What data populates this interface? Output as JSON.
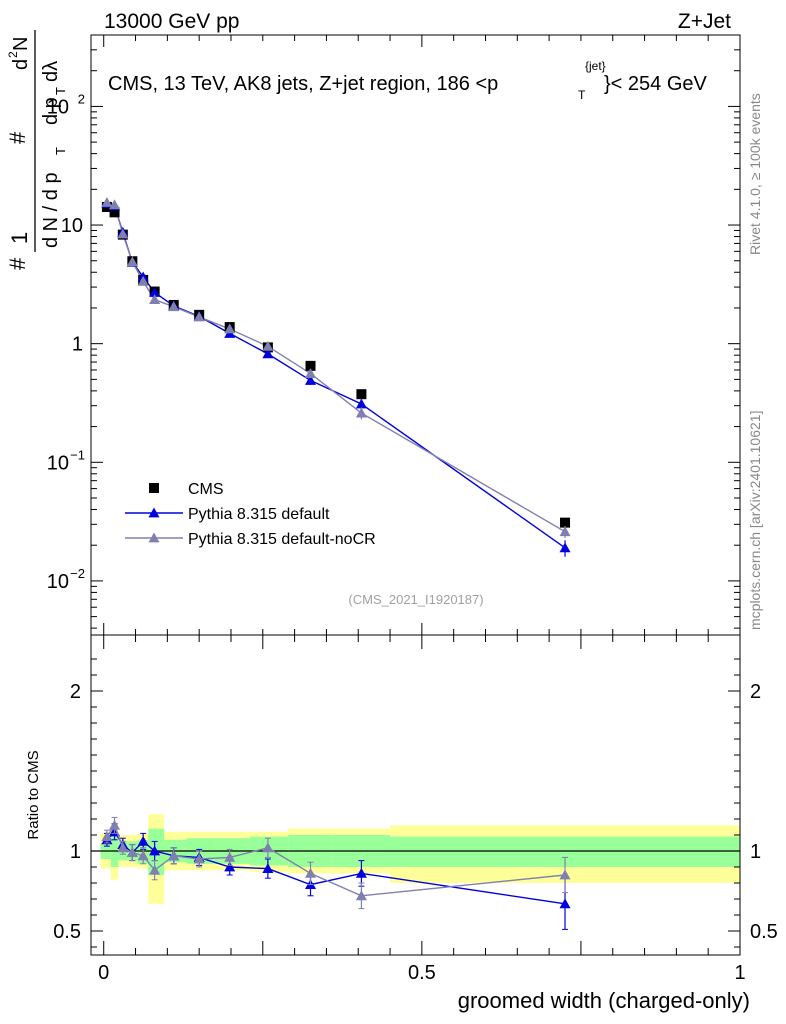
{
  "header": {
    "left": "13000 GeV pp",
    "right": "Z+Jet"
  },
  "side_labels": {
    "rivet": "Rivet 4.1.0, ≥ 100k events",
    "mcplots": "mcplots.cern.ch [arXiv:2401.10621]"
  },
  "colors": {
    "data": "#000000",
    "default": "#0000dd",
    "nocr": "#8080b0",
    "band_inner": "#99ff99",
    "band_outer": "#ffff99"
  },
  "chart_data": [
    {
      "type": "line",
      "scale": "log",
      "title_parts": {
        "prefix": "CMS, 13 TeV, AK8 jets, Z+jet region, 186 <p",
        "sup": "{jet}",
        "sub": "T",
        "suffix": "}< 254 GeV"
      },
      "ylabel_parts": {
        "hash1": "#",
        "one": "1",
        "dN": "d N / d p",
        "t1": "T",
        "hash2": "#",
        "dp": "d p",
        "t2": "T",
        "d2N": "d",
        "sq": "2",
        "N": "N",
        "dlam": "dλ"
      },
      "ylim": [
        0.0035,
        400
      ],
      "y_ticks": [
        {
          "value": 0.01,
          "base": "10",
          "exp": "−2"
        },
        {
          "value": 0.1,
          "base": "10",
          "exp": "−1"
        },
        {
          "value": 1,
          "base": "1",
          "exp": ""
        },
        {
          "value": 10,
          "base": "10",
          "exp": ""
        },
        {
          "value": 100,
          "base": "10",
          "exp": "2"
        }
      ],
      "watermark": "(CMS_2021_I1920187)",
      "legend": [
        {
          "label": "CMS",
          "marker": "square",
          "series": "data"
        },
        {
          "label": "Pythia 8.315 default",
          "marker": "triangle",
          "series": "default"
        },
        {
          "label": "Pythia 8.315 default-noCR",
          "marker": "triangle",
          "series": "nocr"
        }
      ],
      "series": [
        {
          "name": "CMS",
          "key": "data",
          "x": [
            0.005,
            0.017,
            0.03,
            0.045,
            0.062,
            0.08,
            0.11,
            0.15,
            0.198,
            0.258,
            0.325,
            0.405,
            0.725
          ],
          "y": [
            14.2,
            12.8,
            8.3,
            4.95,
            3.45,
            2.75,
            2.12,
            1.75,
            1.38,
            0.93,
            0.65,
            0.375,
            0.031
          ]
        },
        {
          "name": "Pythia 8.315 default",
          "key": "default",
          "x": [
            0.005,
            0.017,
            0.03,
            0.045,
            0.062,
            0.08,
            0.11,
            0.15,
            0.198,
            0.258,
            0.325,
            0.405,
            0.725
          ],
          "y": [
            15.2,
            14.5,
            8.7,
            4.85,
            3.65,
            2.7,
            2.08,
            1.7,
            1.22,
            0.82,
            0.49,
            0.31,
            0.019
          ],
          "err": [
            1.2,
            1.0,
            0.5,
            0.3,
            0.2,
            0.15,
            0.12,
            0.1,
            0.08,
            0.06,
            0.04,
            0.03,
            0.003
          ]
        },
        {
          "name": "Pythia 8.315 default-noCR",
          "key": "nocr",
          "x": [
            0.005,
            0.017,
            0.03,
            0.045,
            0.062,
            0.08,
            0.11,
            0.15,
            0.198,
            0.258,
            0.325,
            0.405,
            0.725
          ],
          "y": [
            15.5,
            14.8,
            8.4,
            4.9,
            3.35,
            2.35,
            2.05,
            1.68,
            1.33,
            0.95,
            0.56,
            0.26,
            0.026
          ],
          "err": [
            1.2,
            1.0,
            0.5,
            0.3,
            0.2,
            0.15,
            0.12,
            0.1,
            0.08,
            0.06,
            0.04,
            0.03,
            0.003
          ]
        }
      ]
    },
    {
      "type": "line",
      "ylabel": "Ratio to CMS",
      "xlabel": "groomed width (charged-only)",
      "xlim": [
        -0.02,
        1.0
      ],
      "ylim": [
        0.35,
        2.35
      ],
      "x_ticks": [
        {
          "value": 0,
          "label": "0"
        },
        {
          "value": 0.5,
          "label": "0.5"
        },
        {
          "value": 1,
          "label": "1"
        }
      ],
      "y_ticks": [
        {
          "value": 0.5,
          "label": "0.5"
        },
        {
          "value": 1,
          "label": "1"
        },
        {
          "value": 2,
          "label": "2"
        }
      ],
      "bands": [
        {
          "x0": -0.005,
          "x1": 0.0,
          "in_lo": 0.95,
          "in_hi": 1.05,
          "out_lo": 0.89,
          "out_hi": 1.11
        },
        {
          "x0": 0.0,
          "x1": 0.011,
          "in_lo": 0.95,
          "in_hi": 1.06,
          "out_lo": 0.89,
          "out_hi": 1.12
        },
        {
          "x0": 0.011,
          "x1": 0.023,
          "in_lo": 0.9,
          "in_hi": 1.1,
          "out_lo": 0.82,
          "out_hi": 1.17
        },
        {
          "x0": 0.023,
          "x1": 0.037,
          "in_lo": 0.94,
          "in_hi": 1.06,
          "out_lo": 0.9,
          "out_hi": 1.1
        },
        {
          "x0": 0.037,
          "x1": 0.053,
          "in_lo": 0.94,
          "in_hi": 1.06,
          "out_lo": 0.9,
          "out_hi": 1.1
        },
        {
          "x0": 0.053,
          "x1": 0.07,
          "in_lo": 0.92,
          "in_hi": 1.07,
          "out_lo": 0.89,
          "out_hi": 1.11
        },
        {
          "x0": 0.07,
          "x1": 0.095,
          "in_lo": 0.85,
          "in_hi": 1.14,
          "out_lo": 0.67,
          "out_hi": 1.23
        },
        {
          "x0": 0.095,
          "x1": 0.13,
          "in_lo": 0.93,
          "in_hi": 1.07,
          "out_lo": 0.88,
          "out_hi": 1.12
        },
        {
          "x0": 0.13,
          "x1": 0.175,
          "in_lo": 0.92,
          "in_hi": 1.08,
          "out_lo": 0.88,
          "out_hi": 1.12
        },
        {
          "x0": 0.175,
          "x1": 0.23,
          "in_lo": 0.92,
          "in_hi": 1.08,
          "out_lo": 0.88,
          "out_hi": 1.12
        },
        {
          "x0": 0.23,
          "x1": 0.29,
          "in_lo": 0.91,
          "in_hi": 1.09,
          "out_lo": 0.87,
          "out_hi": 1.12
        },
        {
          "x0": 0.29,
          "x1": 0.36,
          "in_lo": 0.9,
          "in_hi": 1.1,
          "out_lo": 0.86,
          "out_hi": 1.14
        },
        {
          "x0": 0.36,
          "x1": 0.45,
          "in_lo": 0.9,
          "in_hi": 1.1,
          "out_lo": 0.86,
          "out_hi": 1.14
        },
        {
          "x0": 0.45,
          "x1": 1.0,
          "in_lo": 0.9,
          "in_hi": 1.09,
          "out_lo": 0.8,
          "out_hi": 1.16
        }
      ],
      "series": [
        {
          "name": "Pythia 8.315 default",
          "key": "default",
          "x": [
            0.005,
            0.017,
            0.03,
            0.045,
            0.062,
            0.08,
            0.11,
            0.15,
            0.198,
            0.258,
            0.325,
            0.405,
            0.725
          ],
          "y": [
            1.07,
            1.12,
            1.04,
            0.99,
            1.06,
            1.0,
            0.97,
            0.96,
            0.9,
            0.89,
            0.79,
            0.86,
            0.67
          ],
          "err": [
            0.04,
            0.05,
            0.04,
            0.05,
            0.05,
            0.06,
            0.05,
            0.05,
            0.05,
            0.06,
            0.07,
            0.08,
            0.16
          ]
        },
        {
          "name": "Pythia 8.315 default-noCR",
          "key": "nocr",
          "x": [
            0.005,
            0.017,
            0.03,
            0.045,
            0.062,
            0.08,
            0.11,
            0.15,
            0.198,
            0.258,
            0.325,
            0.405,
            0.725
          ],
          "y": [
            1.09,
            1.16,
            1.02,
            0.99,
            0.97,
            0.88,
            0.97,
            0.95,
            0.96,
            1.02,
            0.86,
            0.72,
            0.85
          ],
          "err": [
            0.04,
            0.05,
            0.04,
            0.05,
            0.05,
            0.06,
            0.05,
            0.05,
            0.05,
            0.06,
            0.07,
            0.08,
            0.11
          ]
        }
      ]
    }
  ]
}
